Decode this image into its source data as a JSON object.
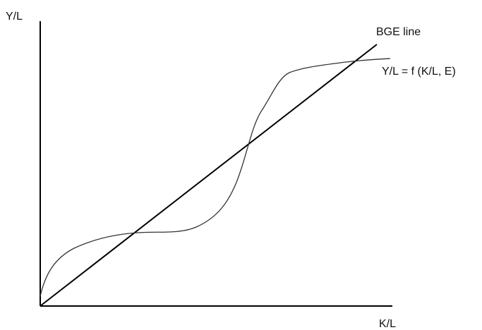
{
  "diagram": {
    "y_axis_label": "Y/L",
    "x_axis_label": "K/L",
    "line_label": "BGE line",
    "curve_label": "Y/L = f (K/L, E)",
    "colors": {
      "axis": "#000000",
      "bge_line": "#000000",
      "curve": "#333333",
      "text": "#111111"
    }
  }
}
